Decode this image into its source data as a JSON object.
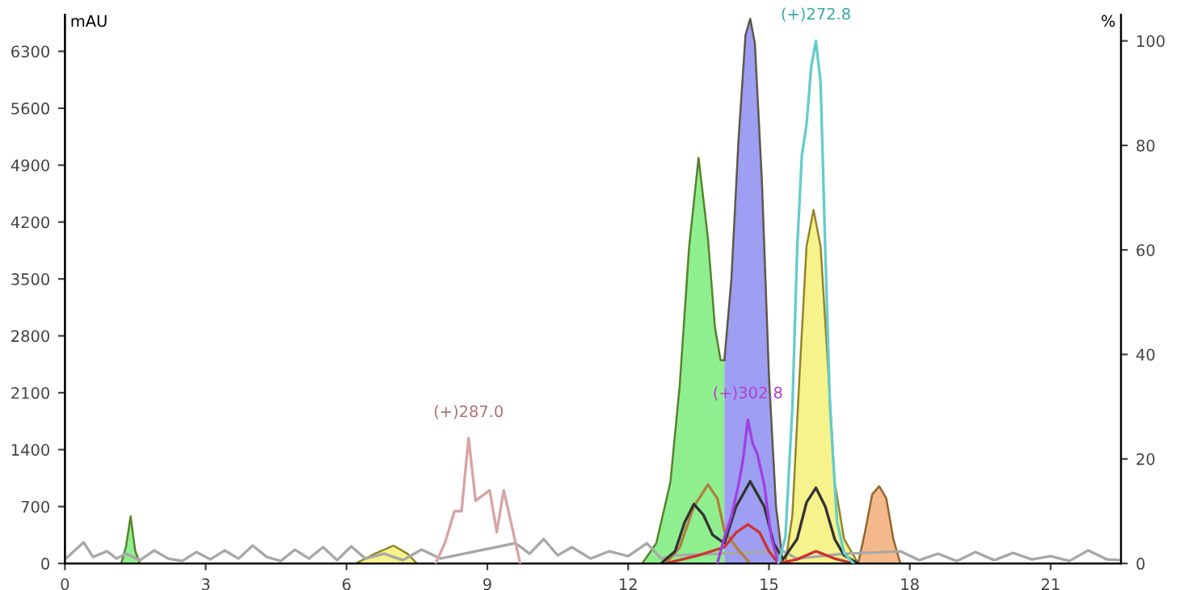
{
  "chart_data": {
    "type": "line",
    "ylabel": "mAU",
    "y2label": "%",
    "xlim": [
      0,
      22.5
    ],
    "xticks": [
      0,
      3,
      6,
      9,
      12,
      15,
      18,
      21
    ],
    "ylim": [
      0,
      6750
    ],
    "yticks": [
      0,
      700,
      1400,
      2100,
      2800,
      3500,
      4200,
      4900,
      5600,
      6300
    ],
    "y2lim": [
      0,
      105
    ],
    "y2ticks": [
      0,
      20,
      40,
      60,
      80,
      100
    ],
    "grid": false,
    "legend": false,
    "annotations": [
      {
        "text": "(+)287.0",
        "x": 8.6,
        "y": 1540
      },
      {
        "text": "(+)302.8",
        "x": 14.55,
        "y": 1770
      },
      {
        "text": "(+)272.8",
        "x": 16.0,
        "y": 6430
      }
    ],
    "series": [
      {
        "color": "#a8a8a8",
        "x": [
          0,
          0.4,
          0.6,
          0.9,
          1.1,
          1.3,
          1.6,
          1.9,
          2.2,
          2.5,
          2.8,
          3.1,
          3.4,
          3.7,
          4.0,
          4.3,
          4.6,
          4.9,
          5.2,
          5.5,
          5.8,
          6.1,
          6.4,
          6.8,
          7.2,
          7.6,
          8.0,
          9.6,
          9.9,
          10.2,
          10.5,
          10.8,
          11.2,
          11.6,
          12.0,
          12.4,
          12.7,
          13.0,
          15.3,
          15.6,
          16.6,
          17.8,
          18.2,
          18.6,
          19.0,
          19.4,
          19.8,
          20.2,
          20.6,
          21.0,
          21.4,
          21.8,
          22.2,
          22.5
        ],
        "values": [
          50,
          260,
          80,
          150,
          60,
          120,
          40,
          160,
          60,
          30,
          140,
          50,
          160,
          60,
          220,
          80,
          30,
          170,
          60,
          200,
          40,
          210,
          60,
          120,
          40,
          170,
          60,
          250,
          120,
          300,
          100,
          200,
          60,
          150,
          90,
          250,
          60,
          100,
          150,
          60,
          120,
          150,
          40,
          120,
          30,
          140,
          40,
          130,
          50,
          90,
          30,
          160,
          50,
          40
        ]
      },
      {
        "type": "area",
        "color": "#8fef8f",
        "x": [
          1.2,
          1.3,
          1.4,
          1.5,
          1.6
        ],
        "values": [
          0,
          200,
          580,
          150,
          0
        ]
      },
      {
        "type": "area",
        "color": "#f6f28c",
        "x": [
          6.2,
          6.6,
          7.0,
          7.3,
          7.5
        ],
        "values": [
          0,
          120,
          220,
          120,
          0
        ]
      },
      {
        "type": "area",
        "color": "#8fef8f",
        "x": [
          12.3,
          12.6,
          12.9,
          13.1,
          13.3,
          13.5,
          13.7,
          13.85,
          13.97,
          14.05
        ],
        "values": [
          0,
          250,
          1000,
          2200,
          3900,
          4990,
          4000,
          2900,
          2500,
          2500
        ]
      },
      {
        "type": "area",
        "color": "#9e9ef2",
        "x": [
          14.05,
          14.2,
          14.35,
          14.5,
          14.6,
          14.7,
          14.85,
          15.0,
          15.15,
          15.3
        ],
        "values": [
          2500,
          3500,
          5200,
          6500,
          6700,
          6400,
          4700,
          2300,
          700,
          0
        ]
      },
      {
        "type": "area",
        "color": "#f6f28c",
        "x": [
          15.35,
          15.5,
          15.65,
          15.8,
          15.95,
          16.1,
          16.25,
          16.4,
          16.6,
          16.9
        ],
        "values": [
          0,
          600,
          2300,
          3900,
          4350,
          3900,
          2500,
          1000,
          300,
          0
        ]
      },
      {
        "type": "area",
        "color": "#f5b88c",
        "x": [
          16.9,
          17.05,
          17.2,
          17.35,
          17.5,
          17.65,
          17.8
        ],
        "values": [
          0,
          400,
          850,
          950,
          800,
          300,
          0
        ]
      },
      {
        "color": "#b08040",
        "x": [
          12.8,
          13.1,
          13.4,
          13.7,
          13.9,
          14.05,
          14.3,
          14.6
        ],
        "values": [
          0,
          200,
          700,
          970,
          800,
          400,
          200,
          0
        ]
      },
      {
        "color": "#333333",
        "x": [
          12.7,
          13.0,
          13.2,
          13.4,
          13.6,
          13.8,
          14.05,
          14.3,
          14.6,
          14.9,
          15.1,
          15.3,
          15.6,
          15.8,
          16.0,
          16.2,
          16.4,
          16.6,
          16.9
        ],
        "values": [
          0,
          150,
          500,
          730,
          600,
          350,
          250,
          700,
          1010,
          700,
          250,
          50,
          300,
          750,
          930,
          700,
          300,
          100,
          0
        ]
      },
      {
        "color": "#cc3333",
        "x": [
          12.8,
          13.5,
          14.05,
          14.3,
          14.55,
          14.8,
          15.0,
          15.2,
          15.6,
          16.0,
          16.4,
          16.8
        ],
        "values": [
          0,
          100,
          200,
          380,
          480,
          380,
          150,
          0,
          50,
          150,
          60,
          0
        ]
      },
      {
        "axis": "y2",
        "color": "#d8a4a4",
        "x": [
          7.9,
          8.1,
          8.3,
          8.45,
          8.6,
          8.75,
          8.9,
          9.05,
          9.2,
          9.35,
          9.5,
          9.7
        ],
        "values": [
          0,
          4,
          10,
          10,
          24,
          12,
          13,
          14,
          6,
          14,
          8,
          0
        ]
      },
      {
        "axis": "y2",
        "color": "#a040e0",
        "x": [
          13.9,
          14.05,
          14.2,
          14.35,
          14.45,
          14.55,
          14.65,
          14.75,
          14.9,
          15.05,
          15.2
        ],
        "values": [
          0,
          5,
          9,
          15,
          20,
          27.5,
          23,
          21,
          15,
          5,
          0
        ]
      },
      {
        "axis": "y2",
        "color": "#66cccc",
        "x": [
          15.2,
          15.35,
          15.5,
          15.6,
          15.7,
          15.8,
          15.9,
          16.0,
          16.1,
          16.2,
          16.3,
          16.45,
          16.6,
          16.8
        ],
        "values": [
          0,
          5,
          30,
          60,
          78,
          84,
          95,
          100,
          92,
          60,
          30,
          8,
          2,
          0
        ]
      }
    ]
  }
}
